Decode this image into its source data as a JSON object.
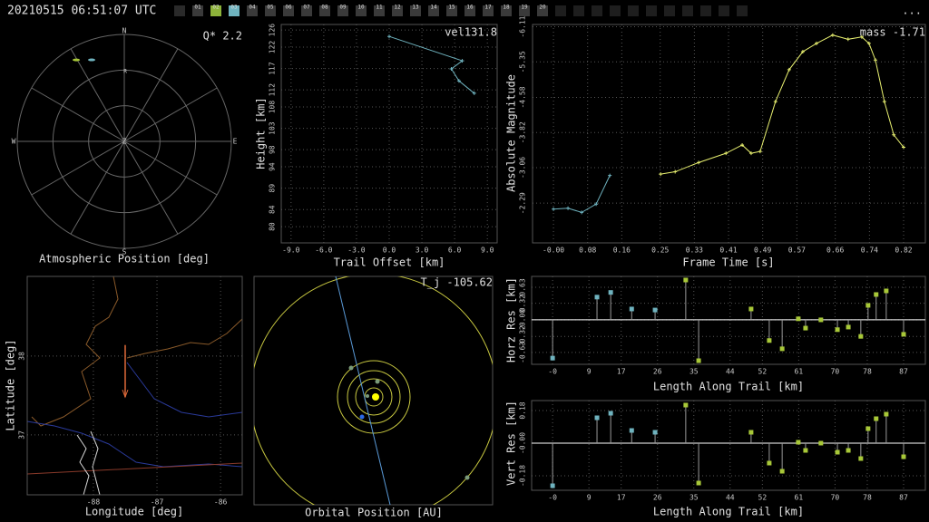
{
  "header": {
    "timestamp": "20210515 06:51:07 UTC",
    "menu": "...",
    "frames": [
      {
        "label": "01"
      },
      {
        "label": "02",
        "color": "#8db33a"
      },
      {
        "label": "03",
        "color": "#6fb3bf"
      },
      {
        "label": "04"
      },
      {
        "label": "05"
      },
      {
        "label": "06"
      },
      {
        "label": "07"
      },
      {
        "label": "08"
      },
      {
        "label": "09"
      },
      {
        "label": "10"
      },
      {
        "label": "11"
      },
      {
        "label": "12"
      },
      {
        "label": "13"
      },
      {
        "label": "14"
      },
      {
        "label": "15"
      },
      {
        "label": "16"
      },
      {
        "label": "17"
      },
      {
        "label": "18"
      },
      {
        "label": "19"
      },
      {
        "label": "20"
      }
    ]
  },
  "chart_data": [
    {
      "type": "polar",
      "title": "Atmospheric Position [deg]",
      "annotation": "Q*  2.2",
      "directions": [
        "N",
        "E",
        "S",
        "W"
      ],
      "center_label": "Z",
      "site_label": "R",
      "rlim": [
        0,
        90
      ],
      "series": [
        {
          "color": "#a8c838",
          "azimuth": [
            329.5
          ],
          "zenith": [
            79.6
          ]
        },
        {
          "color": "#6fb3bf",
          "azimuth": [
            338.2
          ],
          "zenith": [
            73.9
          ]
        }
      ]
    },
    {
      "type": "line",
      "annotation": "vel131.8",
      "xlabel": "Trail Offset [km]",
      "ylabel": "Height [km]",
      "grid": true,
      "xlim": [
        -9.9,
        9.9
      ],
      "ylim": [
        76.2,
        127.3
      ],
      "xticks": [
        {
          "value": -9,
          "label": "-9.0"
        },
        {
          "value": -6,
          "label": "-6.0"
        },
        {
          "value": -3,
          "label": "-3.0"
        },
        {
          "value": 0,
          "label": "0.0"
        },
        {
          "value": 3,
          "label": "3.0"
        },
        {
          "value": 6,
          "label": "6.0"
        },
        {
          "value": 9,
          "label": "9.0"
        }
      ],
      "yticks": [
        80,
        84,
        89,
        94,
        98,
        103,
        108,
        112,
        117,
        122,
        126
      ],
      "series": [
        {
          "color": "#6fb3bf",
          "x": [
            0,
            6.7,
            5.7,
            6.4,
            7.8
          ],
          "values": [
            124.5,
            118.8,
            116.9,
            114.1,
            111.2
          ]
        }
      ]
    },
    {
      "type": "line",
      "annotation": "mass -1.71",
      "xlabel": "Frame Time [s]",
      "ylabel": "Absolute Magnitude",
      "grid": true,
      "y_reversed": true,
      "xlim": [
        -0.049,
        0.871
      ],
      "ylim": [
        -6.16,
        -1.43
      ],
      "xticks": [
        {
          "value": 0,
          "label": "-0.00"
        },
        0.08,
        0.16,
        0.25,
        0.33,
        0.41,
        0.49,
        0.57,
        0.66,
        0.74,
        0.82
      ],
      "yticks": [
        -6.11,
        -5.35,
        -4.58,
        -3.82,
        -3.06,
        -2.29
      ],
      "series": [
        {
          "color": "#6fb3bf",
          "x": [
            0,
            0.034,
            0.066,
            0.1,
            0.132
          ],
          "values": [
            -2.16,
            -2.18,
            -2.09,
            -2.27,
            -2.89
          ]
        },
        {
          "color": "#e8f070",
          "x": [
            0.251,
            0.285,
            0.34,
            0.404,
            0.442,
            0.463,
            0.484,
            0.52,
            0.552,
            0.584,
            0.616,
            0.654,
            0.69,
            0.722,
            0.739,
            0.754,
            0.775,
            0.797,
            0.82
          ],
          "values": [
            -2.92,
            -2.97,
            -3.17,
            -3.37,
            -3.55,
            -3.37,
            -3.41,
            -4.49,
            -5.18,
            -5.57,
            -5.75,
            -5.93,
            -5.84,
            -5.89,
            -5.75,
            -5.39,
            -4.49,
            -3.77,
            -3.5
          ]
        }
      ]
    },
    {
      "type": "map",
      "xlabel": "Longitude [deg]",
      "ylabel": "Latitude [deg]",
      "grid": true,
      "xlim": [
        -89.04,
        -85.66
      ],
      "ylim": [
        36.24,
        39.01
      ],
      "xticks": [
        -88,
        -87,
        -86
      ],
      "yticks": [
        37,
        38
      ],
      "trail": {
        "color": "#e06a3a",
        "lon": [
          -87.5,
          -87.5
        ],
        "lat": [
          38.14,
          37.48
        ]
      }
    },
    {
      "type": "orbit",
      "title": "Orbital Position [AU]",
      "annotation": "T_j -105.62"
    },
    {
      "type": "stem",
      "xlabel": "Length Along Trail [km]",
      "ylabel": "Horz Res [km]",
      "grid": true,
      "xlim": [
        -5.2,
        92.4
      ],
      "ylim": [
        -0.86,
        0.84
      ],
      "xticks": [
        {
          "value": 0,
          "label": "-0"
        },
        9,
        17,
        26,
        35,
        44,
        52,
        61,
        70,
        78,
        87
      ],
      "yticks": [
        0.63,
        0.32,
        {
          "value": 0,
          "label": "-0.00"
        },
        -0.32,
        -0.63
      ],
      "series": [
        {
          "color": "#6fb3bf",
          "x": [
            0,
            11.0,
            14.4,
            19.6,
            25.4
          ],
          "values": [
            -0.74,
            0.44,
            0.53,
            0.21,
            0.19
          ]
        },
        {
          "color": "#a8c838",
          "x": [
            33.0,
            36.2,
            49.2,
            53.7,
            56.9,
            60.9,
            62.7,
            66.5,
            70.6,
            73.3,
            76.4,
            78.2,
            80.2,
            82.7,
            87.0
          ],
          "values": [
            0.77,
            -0.79,
            0.21,
            -0.4,
            -0.56,
            0.02,
            -0.16,
            0,
            -0.19,
            -0.14,
            -0.32,
            0.28,
            0.49,
            0.56,
            -0.28
          ]
        }
      ]
    },
    {
      "type": "stem",
      "xlabel": "Length Along Trail [km]",
      "ylabel": "Vert Res [km]",
      "grid": true,
      "xlim": [
        -5.2,
        92.4
      ],
      "ylim": [
        -0.26,
        0.235
      ],
      "xticks": [
        {
          "value": 0,
          "label": "-0"
        },
        9,
        17,
        26,
        35,
        44,
        52,
        61,
        70,
        78,
        87
      ],
      "yticks": [
        0.18,
        {
          "value": 0,
          "label": "-0.00"
        },
        -0.18
      ],
      "series": [
        {
          "color": "#6fb3bf",
          "x": [
            0,
            11.0,
            14.4,
            19.6,
            25.4
          ],
          "values": [
            -0.235,
            0.14,
            0.165,
            0.07,
            0.06
          ]
        },
        {
          "color": "#a8c838",
          "x": [
            33.0,
            36.2,
            49.2,
            53.7,
            56.9,
            60.9,
            62.7,
            66.5,
            70.6,
            73.3,
            76.4,
            78.2,
            80.2,
            82.7,
            87.0
          ],
          "values": [
            0.21,
            -0.22,
            0.06,
            -0.11,
            -0.155,
            0.005,
            -0.04,
            0,
            -0.05,
            -0.04,
            -0.085,
            0.08,
            0.135,
            0.16,
            -0.075
          ]
        }
      ]
    }
  ]
}
